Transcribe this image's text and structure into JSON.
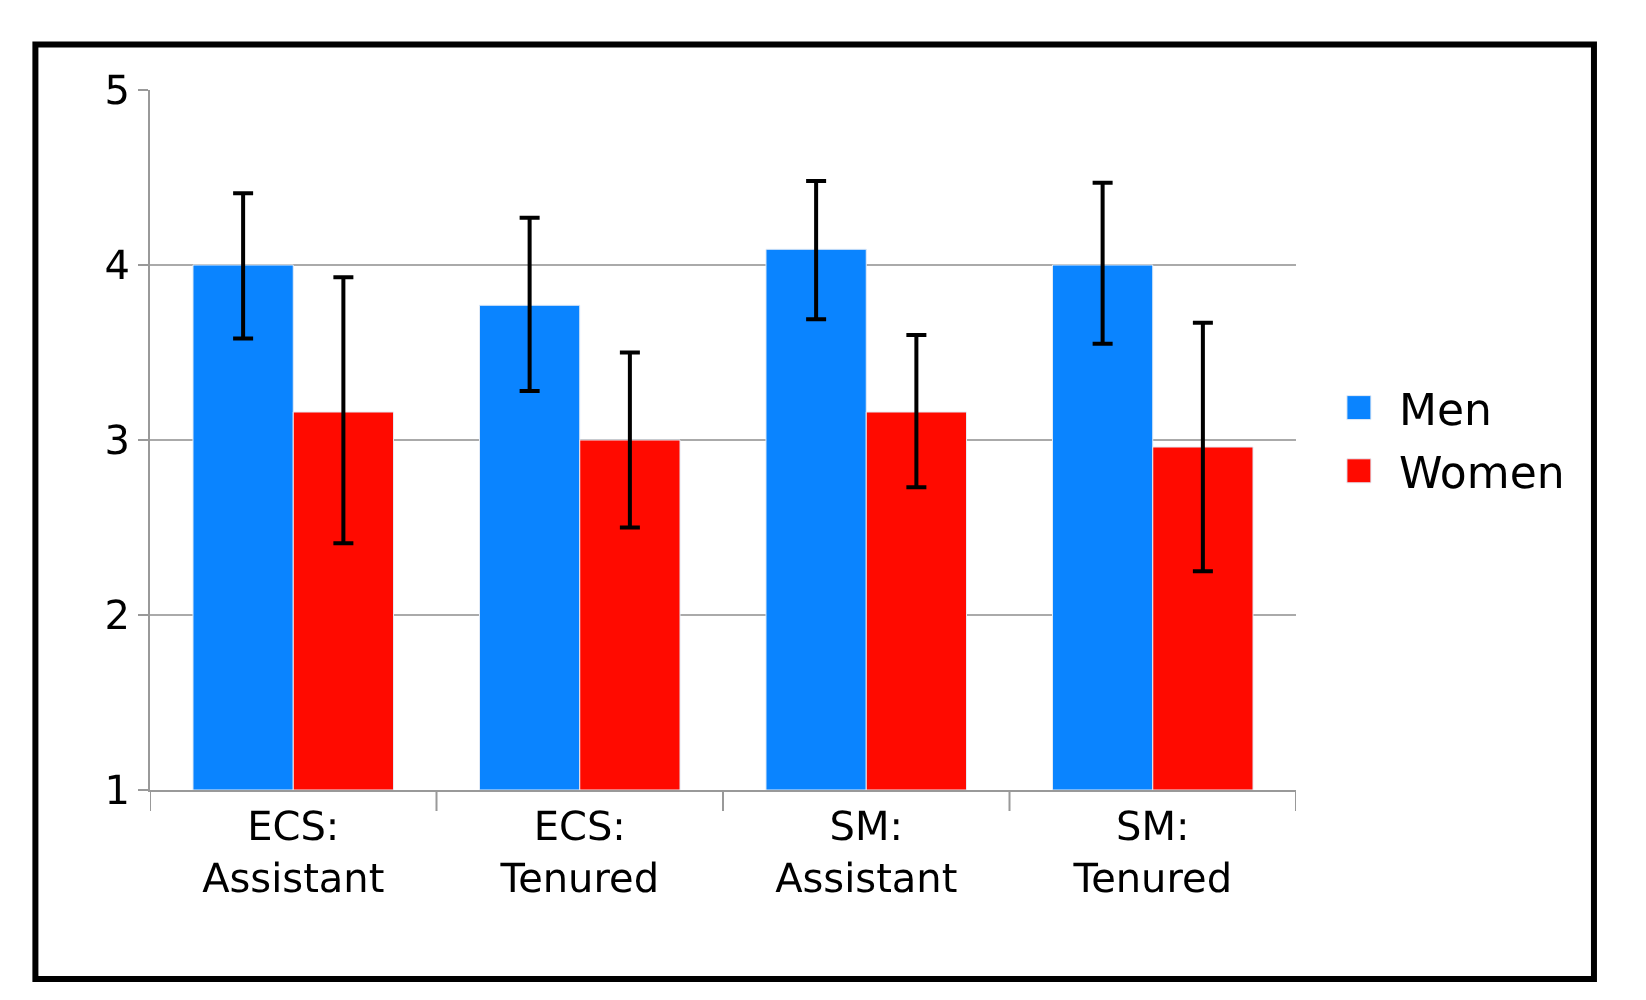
{
  "chart_data": {
    "type": "bar",
    "categories": [
      "ECS:\nAssistant",
      "ECS:\nTenured",
      "SM:\nAssistant",
      "SM:\nTenured"
    ],
    "series": [
      {
        "name": "Men",
        "color": "#0a84ff",
        "values": [
          4.0,
          3.77,
          4.09,
          4.0
        ],
        "errors": [
          [
            3.58,
            4.41
          ],
          [
            3.28,
            4.27
          ],
          [
            3.69,
            4.48
          ],
          [
            3.55,
            4.47
          ]
        ]
      },
      {
        "name": "Women",
        "color": "#ff0a00",
        "values": [
          3.16,
          3.0,
          3.16,
          2.96
        ],
        "errors": [
          [
            2.41,
            3.93
          ],
          [
            2.5,
            3.5
          ],
          [
            2.73,
            3.6
          ],
          [
            2.25,
            3.67
          ]
        ]
      }
    ],
    "ylim": [
      1,
      5
    ],
    "yticks": [
      1,
      2,
      3,
      4,
      5
    ],
    "grid": "y",
    "legend": "right"
  }
}
